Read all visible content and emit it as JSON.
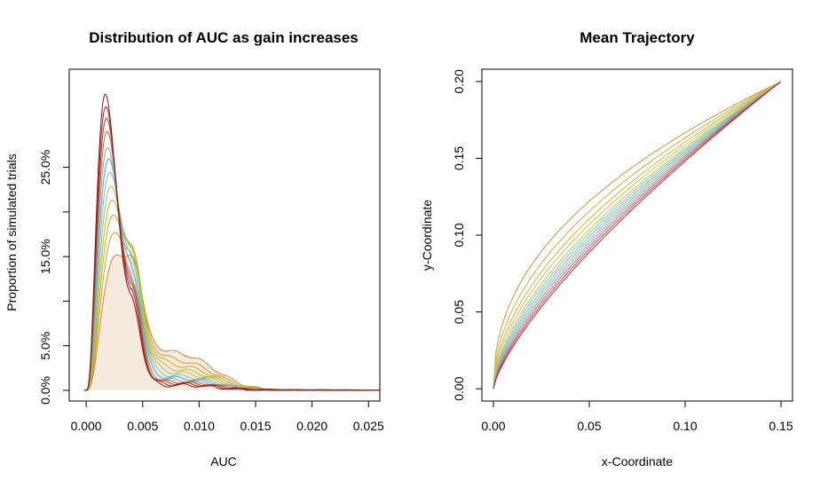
{
  "chart_data": [
    {
      "type": "line",
      "title": "Distribution of AUC as gain increases",
      "xlabel": "AUC",
      "ylabel": "Proportion of simulated trials",
      "xlim": [
        -0.0015,
        0.026
      ],
      "ylim": [
        -0.012,
        0.36
      ],
      "x_ticks": [
        0.0,
        0.005,
        0.01,
        0.015,
        0.02,
        0.025
      ],
      "x_tick_labels": [
        "0.000",
        "0.005",
        "0.010",
        "0.015",
        "0.020",
        "0.025"
      ],
      "y_ticks": [
        0.0,
        0.05,
        0.15,
        0.25
      ],
      "y_tick_labels": [
        "0.0%",
        "5.0%",
        "15.0%",
        "25.0%"
      ],
      "y_minor_ticks": [
        0.1,
        0.2
      ],
      "fill_color": "#f6e9dd",
      "series_colors": [
        "#cc8833",
        "#d49a2a",
        "#c8a81e",
        "#b8b82a",
        "#a8c050",
        "#7fbfb0",
        "#4aa8c8",
        "#7aa8b0",
        "#c06848",
        "#b83a2a",
        "#a02020",
        "#8b1a1a"
      ],
      "peak_x": [
        0.0026,
        0.0025,
        0.0024,
        0.0023,
        0.0022,
        0.0021,
        0.002,
        0.0019,
        0.00185,
        0.0018,
        0.00175,
        0.0017
      ],
      "peak_y": [
        0.148,
        0.175,
        0.195,
        0.212,
        0.228,
        0.244,
        0.259,
        0.272,
        0.29,
        0.305,
        0.318,
        0.332
      ],
      "second_peak": [
        0.132,
        0.128,
        0.138,
        0.142,
        0.142,
        0.138,
        0.132,
        0.126,
        0.12,
        0.115,
        0.11,
        0.105
      ],
      "tail_level": [
        0.075,
        0.06,
        0.05,
        0.042,
        0.036,
        0.03,
        0.026,
        0.022,
        0.018,
        0.016,
        0.014,
        0.012
      ]
    },
    {
      "type": "line",
      "title": "Mean Trajectory",
      "xlabel": "x-Coordinate",
      "ylabel": "y-Coordinate",
      "xlim": [
        -0.006,
        0.156
      ],
      "ylim": [
        -0.008,
        0.208
      ],
      "x_ticks": [
        0.0,
        0.05,
        0.1,
        0.15
      ],
      "x_tick_labels": [
        "0.00",
        "0.05",
        "0.10",
        "0.15"
      ],
      "y_ticks": [
        0.0,
        0.05,
        0.1,
        0.15,
        0.2
      ],
      "y_tick_labels": [
        "0.00",
        "0.05",
        "0.10",
        "0.15",
        "0.20"
      ],
      "start": [
        0.0,
        0.0
      ],
      "end": [
        0.15,
        0.2
      ],
      "series_colors": [
        "#d8923a",
        "#d8a84a",
        "#d0b840",
        "#c8c850",
        "#b0c860",
        "#90c0a0",
        "#70b8c8",
        "#80b0c0",
        "#a09090",
        "#c06070",
        "#c04848",
        "#b83030"
      ],
      "curvature_exponent": [
        0.45,
        0.5,
        0.54,
        0.57,
        0.6,
        0.62,
        0.64,
        0.66,
        0.68,
        0.7,
        0.72,
        0.74
      ]
    }
  ]
}
